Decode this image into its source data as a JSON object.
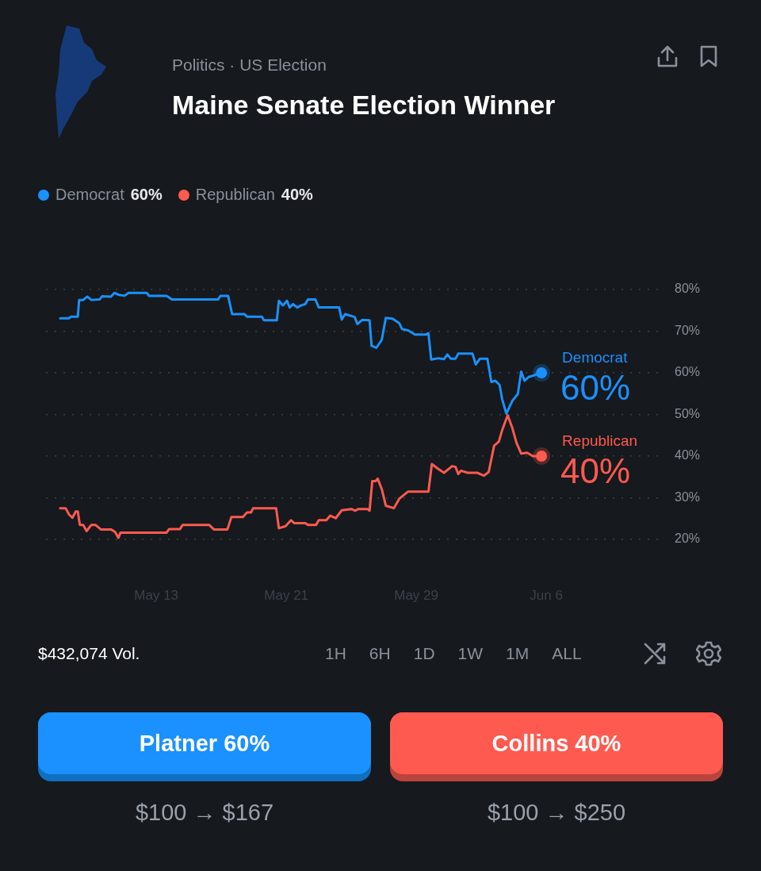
{
  "chart_data": {
    "type": "line",
    "subtitle": "Politics · US Election",
    "title": "Maine Senate Election Winner",
    "legend": "top left",
    "grid": "y",
    "ylim": [
      20,
      80
    ],
    "yticks": [
      {
        "value": 20,
        "label": "20%"
      },
      {
        "value": 30,
        "label": "30%"
      },
      {
        "value": 40,
        "label": "40%"
      },
      {
        "value": 50,
        "label": "50%"
      },
      {
        "value": 60,
        "label": "60%"
      },
      {
        "value": 70,
        "label": "70%"
      },
      {
        "value": 80,
        "label": "80%"
      }
    ],
    "xlim": [
      "--05-06T05:00",
      "--06-12T21:00"
    ],
    "xticks": [
      {
        "value": "--05-13",
        "label": "May 13"
      },
      {
        "value": "--05-21",
        "label": "May 21"
      },
      {
        "value": "--05-29",
        "label": "May 29"
      },
      {
        "value": "--06-06",
        "label": "Jun 6"
      }
    ],
    "series": [
      {
        "name": "Democrat",
        "color": "#1a91ff",
        "x": [
          "--05-07T02:00",
          "--05-07T15:00",
          "--05-07T18:00",
          "--05-08T04:00",
          "--05-08T06:00",
          "--05-08T12:00",
          "--05-08T18:00",
          "--05-09T00:00",
          "--05-09T12:00",
          "--05-09T16:00",
          "--05-10T05:00",
          "--05-10T10:00",
          "--05-10T17:00",
          "--05-11T01:00",
          "--05-11T07:00",
          "--05-12T10:00",
          "--05-12T13:00",
          "--05-13T15:00",
          "--05-13T23:00",
          "--05-16T19:00",
          "--05-16T23:00",
          "--05-17T10:00",
          "--05-17T16:00",
          "--05-18T10:00",
          "--05-18T14:00",
          "--05-19T12:00",
          "--05-19T15:00",
          "--05-20T10:00",
          "--05-20T13:00",
          "--05-20T19:00",
          "--05-21T01:00",
          "--05-21T05:00",
          "--05-21T10:00",
          "--05-21T16:00",
          "--05-21T22:00",
          "--05-22T04:00",
          "--05-22T08:00",
          "--05-22T19:00",
          "--05-23T00:00",
          "--05-24T06:00",
          "--05-24T10:00",
          "--05-24T15:00",
          "--05-25T05:00",
          "--05-25T09:00",
          "--05-25T16:00",
          "--05-26T03:00",
          "--05-26T06:00",
          "--05-26T13:00",
          "--05-26T21:00",
          "--05-27T03:00",
          "--05-27T13:00",
          "--05-27T23:00",
          "--05-28T03:00",
          "--05-28T12:00",
          "--05-28T22:00",
          "--05-29T14:00",
          "--05-29T18:00",
          "--05-29T22:00",
          "--05-30T09:00",
          "--05-30T17:00",
          "--05-30T22:00",
          "--05-31T03:00",
          "--05-31T10:00",
          "--05-31T14:00",
          "--06-01T11:00",
          "--06-01T16:00",
          "--06-01T22:00",
          "--06-02T09:00",
          "--06-02T15:00",
          "--06-02T21:00",
          "--06-03T03:00",
          "--06-03T07:00",
          "--06-03T13:00",
          "--06-03T22:00",
          "--06-04T06:00",
          "--06-04T11:00",
          "--06-04T16:00",
          "--06-04T22:00",
          "--06-05T06:00",
          "--06-05T17:00"
        ],
        "values": [
          73.1,
          73.1,
          73.5,
          73.5,
          77.5,
          77.5,
          78.3,
          77.5,
          77.6,
          78.4,
          78.3,
          79.2,
          78.7,
          78.5,
          79.2,
          79.2,
          78.5,
          78.5,
          77.6,
          77.6,
          78.5,
          78.5,
          74.1,
          74.1,
          73.5,
          73.5,
          72.6,
          72.6,
          77.3,
          76.2,
          77.3,
          75.7,
          76.5,
          75.7,
          76.2,
          76.5,
          77.6,
          77.6,
          75.7,
          75.7,
          72.8,
          74.1,
          73.4,
          71.7,
          72.7,
          72.6,
          66.5,
          66.0,
          67.9,
          73.2,
          73.0,
          71.9,
          70.5,
          70.2,
          69.2,
          69.2,
          69.5,
          63.2,
          63.5,
          63.3,
          64.4,
          63.4,
          63.4,
          64.6,
          64.6,
          62.0,
          63.4,
          63.4,
          57.8,
          58.1,
          57.1,
          53.6,
          50.2,
          53.3,
          54.9,
          60.3,
          58.1,
          59.0,
          59.4,
          60
        ],
        "value_labels": [
          null,
          null,
          null,
          null,
          null,
          null,
          null,
          null,
          null,
          null,
          null,
          null,
          null,
          null,
          null,
          null,
          null,
          null,
          null,
          null,
          null,
          null,
          null,
          null,
          null,
          null,
          null,
          null,
          null,
          null,
          null,
          null,
          null,
          null,
          null,
          null,
          null,
          null,
          null,
          null,
          null,
          null,
          null,
          null,
          null,
          null,
          null,
          null,
          null,
          null,
          null,
          null,
          null,
          null,
          null,
          null,
          null,
          null,
          null,
          null,
          null,
          null,
          null,
          null,
          null,
          null,
          null,
          null,
          null,
          null,
          null,
          null,
          null,
          null,
          null,
          null,
          null,
          null,
          null,
          "60%"
        ]
      },
      {
        "name": "Republican",
        "color": "#ff5a50",
        "x": [
          "--05-07T02:00",
          "--05-07T10:00",
          "--05-07T15:00",
          "--05-07T20:00",
          "--05-08T01:00",
          "--05-08T04:00",
          "--05-08T07:00",
          "--05-08T12:00",
          "--05-08T17:00",
          "--05-09T00:00",
          "--05-09T06:00",
          "--05-09T14:00",
          "--05-10T05:00",
          "--05-10T11:00",
          "--05-10T16:00",
          "--05-10T19:00",
          "--05-13T15:00",
          "--05-13T19:00",
          "--05-14T11:00",
          "--05-14T15:00",
          "--05-16T06:00",
          "--05-16T13:00",
          "--05-17T09:00",
          "--05-17T15:00",
          "--05-18T08:00",
          "--05-18T14:00",
          "--05-18T20:00",
          "--05-18T23:00",
          "--05-20T09:00",
          "--05-20T13:00",
          "--05-20T23:00",
          "--05-21T07:00",
          "--05-21T12:00",
          "--05-22T04:00",
          "--05-22T08:00",
          "--05-22T20:00",
          "--05-23T00:00",
          "--05-23T11:00",
          "--05-23T17:00",
          "--05-24T01:00",
          "--05-24T10:00",
          "--05-25T00:00",
          "--05-25T06:00",
          "--05-25T10:00",
          "--05-26T00:00",
          "--05-26T03:00",
          "--05-26T07:00",
          "--05-26T12:00",
          "--05-26T15:00",
          "--05-26T21:00",
          "--05-27T03:00",
          "--05-27T15:00",
          "--05-27T23:00",
          "--05-28T12:00",
          "--05-29T18:00",
          "--05-29T23:00",
          "--05-30T07:00",
          "--05-30T17:00",
          "--05-31T05:00",
          "--05-31T10:00",
          "--05-31T14:00",
          "--05-31T18:00",
          "--06-01T04:00",
          "--06-01T18:00",
          "--06-02T04:00",
          "--06-02T11:00",
          "--06-02T19:00",
          "--06-03T02:00",
          "--06-03T07:00",
          "--06-03T15:00",
          "--06-03T22:00",
          "--06-04T04:00",
          "--06-04T11:00",
          "--06-04T20:00",
          "--06-05T04:00",
          "--06-05T17:00"
        ],
        "values": [
          27.5,
          27.5,
          26.0,
          25.2,
          26.7,
          26.7,
          23.5,
          23.5,
          22.0,
          23.5,
          23.5,
          22.4,
          22.4,
          21.8,
          20.4,
          21.6,
          21.6,
          22.5,
          22.5,
          23.5,
          23.5,
          22.4,
          22.4,
          25.4,
          25.4,
          26.5,
          26.5,
          27.5,
          27.5,
          22.7,
          23.2,
          24.6,
          23.9,
          23.9,
          23.5,
          23.5,
          24.6,
          24.6,
          25.7,
          25.1,
          27.0,
          27.3,
          26.9,
          27.3,
          27.3,
          26.9,
          34.0,
          34.0,
          34.6,
          32.1,
          28.1,
          27.5,
          29.8,
          31.5,
          31.5,
          38.1,
          37.1,
          36.0,
          37.6,
          37.4,
          35.7,
          36.5,
          36.0,
          36.0,
          35.3,
          36.2,
          42.5,
          43.5,
          46.3,
          49.8,
          46.7,
          43.2,
          40.6,
          40.8,
          40.0,
          40
        ],
        "value_labels": [
          null,
          null,
          null,
          null,
          null,
          null,
          null,
          null,
          null,
          null,
          null,
          null,
          null,
          null,
          null,
          null,
          null,
          null,
          null,
          null,
          null,
          null,
          null,
          null,
          null,
          null,
          null,
          null,
          null,
          null,
          null,
          null,
          null,
          null,
          null,
          null,
          null,
          null,
          null,
          null,
          null,
          null,
          null,
          null,
          null,
          null,
          null,
          null,
          null,
          null,
          null,
          null,
          null,
          null,
          null,
          null,
          null,
          null,
          null,
          null,
          null,
          null,
          null,
          null,
          null,
          null,
          null,
          null,
          null,
          null,
          null,
          null,
          null,
          null,
          null,
          "40%"
        ]
      }
    ],
    "annotations": [
      "$432,074 Vol.",
      "1H",
      "6H",
      "1D",
      "1W",
      "1M",
      "ALL",
      "Platner 60%",
      "Collins 40%",
      "$100 → $167",
      "$100 → $250"
    ]
  }
}
